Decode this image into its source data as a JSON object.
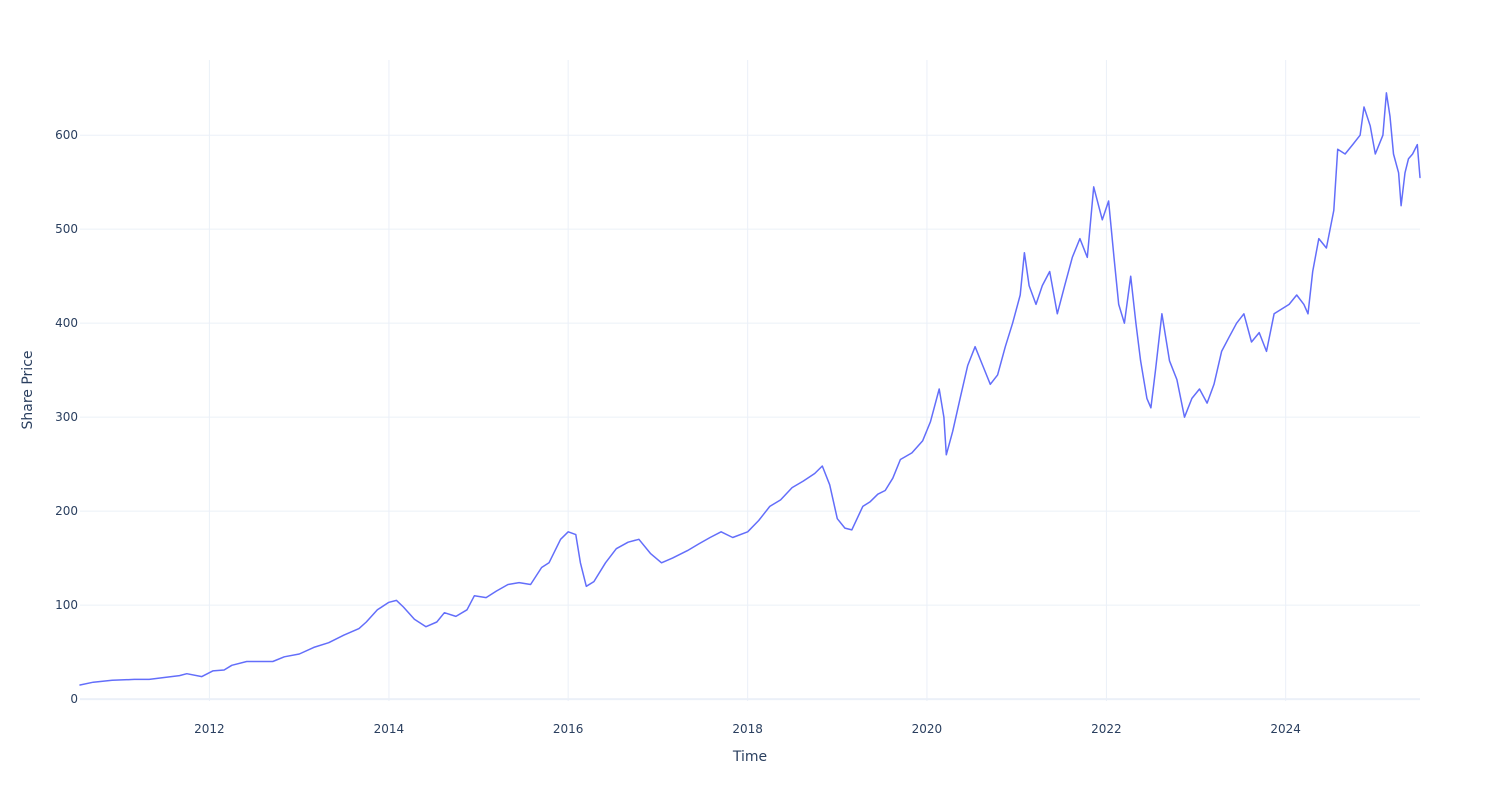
{
  "chart_data": {
    "type": "line",
    "title": "",
    "xlabel": "Time",
    "ylabel": "Share Price",
    "xlim": [
      "2010-07-23",
      "2025-07-01"
    ],
    "ylim": [
      -2,
      680
    ],
    "x_ticks": [
      "2012",
      "2014",
      "2016",
      "2018",
      "2020",
      "2022",
      "2024"
    ],
    "y_ticks": [
      "0",
      "100",
      "200",
      "300",
      "400",
      "500",
      "600"
    ],
    "grid": true,
    "legend": "none",
    "series": [
      {
        "color": "#636efa",
        "points": [
          [
            "2010-07-23",
            15
          ],
          [
            "2010-09-15",
            18
          ],
          [
            "2010-12-01",
            20
          ],
          [
            "2011-03-01",
            21
          ],
          [
            "2011-05-01",
            21
          ],
          [
            "2011-07-01",
            23
          ],
          [
            "2011-09-01",
            25
          ],
          [
            "2011-10-01",
            27
          ],
          [
            "2011-12-01",
            24
          ],
          [
            "2012-01-15",
            30
          ],
          [
            "2012-03-01",
            31
          ],
          [
            "2012-04-01",
            36
          ],
          [
            "2012-06-01",
            40
          ],
          [
            "2012-08-01",
            40
          ],
          [
            "2012-09-15",
            40
          ],
          [
            "2012-11-01",
            45
          ],
          [
            "2013-01-01",
            48
          ],
          [
            "2013-03-01",
            55
          ],
          [
            "2013-05-01",
            60
          ],
          [
            "2013-07-01",
            68
          ],
          [
            "2013-09-01",
            75
          ],
          [
            "2013-10-01",
            82
          ],
          [
            "2013-11-15",
            95
          ],
          [
            "2014-01-01",
            103
          ],
          [
            "2014-02-01",
            105
          ],
          [
            "2014-03-01",
            98
          ],
          [
            "2014-04-15",
            85
          ],
          [
            "2014-06-01",
            77
          ],
          [
            "2014-07-15",
            82
          ],
          [
            "2014-08-15",
            92
          ],
          [
            "2014-10-01",
            88
          ],
          [
            "2014-11-15",
            95
          ],
          [
            "2014-12-15",
            110
          ],
          [
            "2015-02-01",
            108
          ],
          [
            "2015-03-15",
            115
          ],
          [
            "2015-05-01",
            122
          ],
          [
            "2015-06-15",
            124
          ],
          [
            "2015-08-01",
            122
          ],
          [
            "2015-09-15",
            140
          ],
          [
            "2015-10-15",
            145
          ],
          [
            "2015-12-01",
            170
          ],
          [
            "2016-01-01",
            178
          ],
          [
            "2016-02-01",
            175
          ],
          [
            "2016-02-20",
            145
          ],
          [
            "2016-03-15",
            120
          ],
          [
            "2016-04-15",
            125
          ],
          [
            "2016-06-01",
            145
          ],
          [
            "2016-07-15",
            160
          ],
          [
            "2016-09-01",
            167
          ],
          [
            "2016-10-15",
            170
          ],
          [
            "2016-12-01",
            155
          ],
          [
            "2017-01-15",
            145
          ],
          [
            "2017-03-01",
            150
          ],
          [
            "2017-05-01",
            158
          ],
          [
            "2017-06-15",
            165
          ],
          [
            "2017-08-01",
            172
          ],
          [
            "2017-09-15",
            178
          ],
          [
            "2017-11-01",
            172
          ],
          [
            "2018-01-01",
            178
          ],
          [
            "2018-02-15",
            190
          ],
          [
            "2018-04-01",
            205
          ],
          [
            "2018-05-15",
            212
          ],
          [
            "2018-07-01",
            225
          ],
          [
            "2018-08-15",
            232
          ],
          [
            "2018-10-01",
            240
          ],
          [
            "2018-11-01",
            248
          ],
          [
            "2018-12-01",
            228
          ],
          [
            "2019-01-01",
            192
          ],
          [
            "2019-02-01",
            182
          ],
          [
            "2019-03-01",
            180
          ],
          [
            "2019-04-15",
            205
          ],
          [
            "2019-05-15",
            210
          ],
          [
            "2019-06-15",
            218
          ],
          [
            "2019-07-15",
            222
          ],
          [
            "2019-08-15",
            235
          ],
          [
            "2019-09-15",
            255
          ],
          [
            "2019-11-01",
            262
          ],
          [
            "2019-12-15",
            275
          ],
          [
            "2020-01-15",
            295
          ],
          [
            "2020-02-20",
            330
          ],
          [
            "2020-03-10",
            300
          ],
          [
            "2020-03-20",
            260
          ],
          [
            "2020-04-15",
            285
          ],
          [
            "2020-05-15",
            320
          ],
          [
            "2020-06-15",
            355
          ],
          [
            "2020-07-15",
            375
          ],
          [
            "2020-08-15",
            355
          ],
          [
            "2020-09-15",
            335
          ],
          [
            "2020-10-15",
            345
          ],
          [
            "2020-11-15",
            375
          ],
          [
            "2020-12-15",
            400
          ],
          [
            "2021-01-15",
            430
          ],
          [
            "2021-02-01",
            475
          ],
          [
            "2021-02-20",
            440
          ],
          [
            "2021-03-20",
            420
          ],
          [
            "2021-04-15",
            440
          ],
          [
            "2021-05-15",
            455
          ],
          [
            "2021-06-15",
            410
          ],
          [
            "2021-07-15",
            440
          ],
          [
            "2021-08-15",
            470
          ],
          [
            "2021-09-15",
            490
          ],
          [
            "2021-10-15",
            470
          ],
          [
            "2021-11-10",
            545
          ],
          [
            "2021-12-15",
            510
          ],
          [
            "2022-01-10",
            530
          ],
          [
            "2022-02-01",
            470
          ],
          [
            "2022-02-20",
            420
          ],
          [
            "2022-03-15",
            400
          ],
          [
            "2022-04-10",
            450
          ],
          [
            "2022-05-01",
            400
          ],
          [
            "2022-05-20",
            360
          ],
          [
            "2022-06-15",
            320
          ],
          [
            "2022-07-01",
            310
          ],
          [
            "2022-07-20",
            350
          ],
          [
            "2022-08-15",
            410
          ],
          [
            "2022-09-15",
            360
          ],
          [
            "2022-10-15",
            340
          ],
          [
            "2022-11-15",
            300
          ],
          [
            "2022-12-15",
            320
          ],
          [
            "2023-01-15",
            330
          ],
          [
            "2023-02-15",
            315
          ],
          [
            "2023-03-15",
            335
          ],
          [
            "2023-04-15",
            370
          ],
          [
            "2023-05-15",
            385
          ],
          [
            "2023-06-15",
            400
          ],
          [
            "2023-07-15",
            410
          ],
          [
            "2023-08-15",
            380
          ],
          [
            "2023-09-15",
            390
          ],
          [
            "2023-10-15",
            370
          ],
          [
            "2023-11-15",
            410
          ],
          [
            "2023-12-15",
            415
          ],
          [
            "2024-01-15",
            420
          ],
          [
            "2024-02-15",
            430
          ],
          [
            "2024-03-15",
            420
          ],
          [
            "2024-04-01",
            410
          ],
          [
            "2024-04-20",
            455
          ],
          [
            "2024-05-15",
            490
          ],
          [
            "2024-06-15",
            480
          ],
          [
            "2024-07-15",
            520
          ],
          [
            "2024-07-31",
            585
          ],
          [
            "2024-08-30",
            580
          ],
          [
            "2024-09-30",
            590
          ],
          [
            "2024-10-30",
            600
          ],
          [
            "2024-11-15",
            630
          ],
          [
            "2024-12-10",
            610
          ],
          [
            "2024-12-31",
            580
          ],
          [
            "2025-01-31",
            600
          ],
          [
            "2025-02-14",
            645
          ],
          [
            "2025-03-01",
            620
          ],
          [
            "2025-03-15",
            580
          ],
          [
            "2025-04-05",
            560
          ],
          [
            "2025-04-15",
            525
          ],
          [
            "2025-05-01",
            560
          ],
          [
            "2025-05-15",
            575
          ],
          [
            "2025-06-01",
            580
          ],
          [
            "2025-06-20",
            590
          ],
          [
            "2025-07-01",
            555
          ]
        ]
      }
    ]
  }
}
